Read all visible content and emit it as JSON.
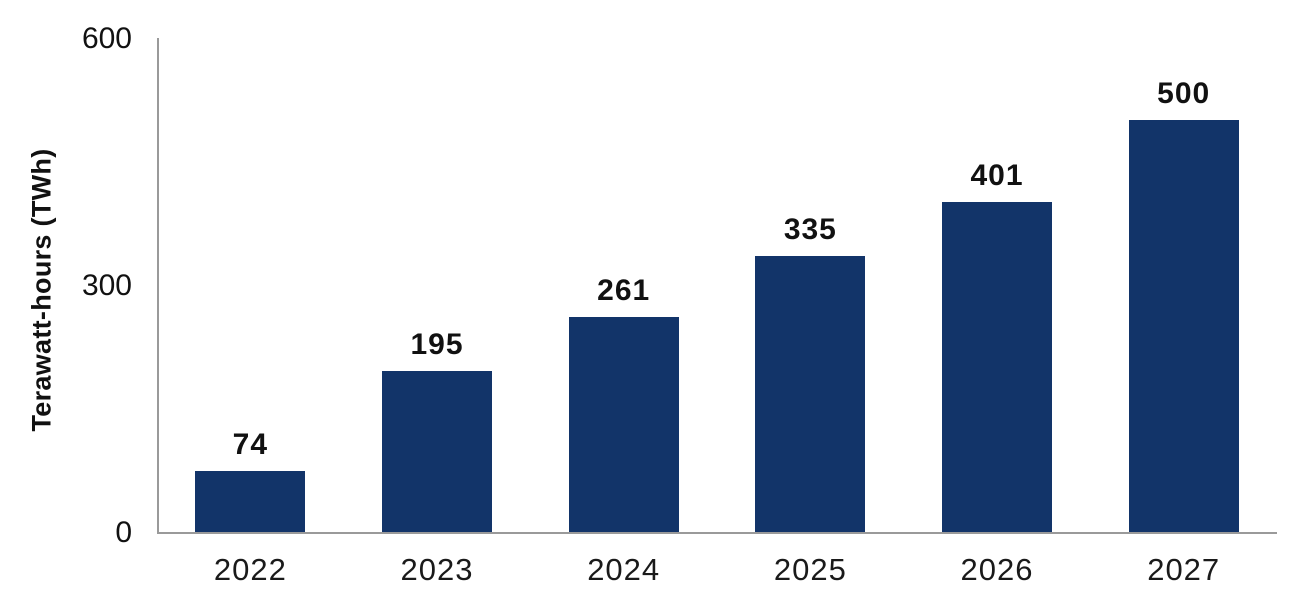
{
  "chart_data": {
    "type": "bar",
    "categories": [
      "2022",
      "2023",
      "2024",
      "2025",
      "2026",
      "2027"
    ],
    "values": [
      74,
      195,
      261,
      335,
      401,
      500
    ],
    "title": "",
    "xlabel": "",
    "ylabel": "Terawatt-hours (TWh)",
    "ylim": [
      0,
      600
    ],
    "yticks": [
      0,
      300,
      600
    ],
    "grid": false,
    "legend": false,
    "colors": {
      "bar": "#123469",
      "axis": "#9a9a9a",
      "text": "#111111",
      "background": "#ffffff"
    }
  }
}
